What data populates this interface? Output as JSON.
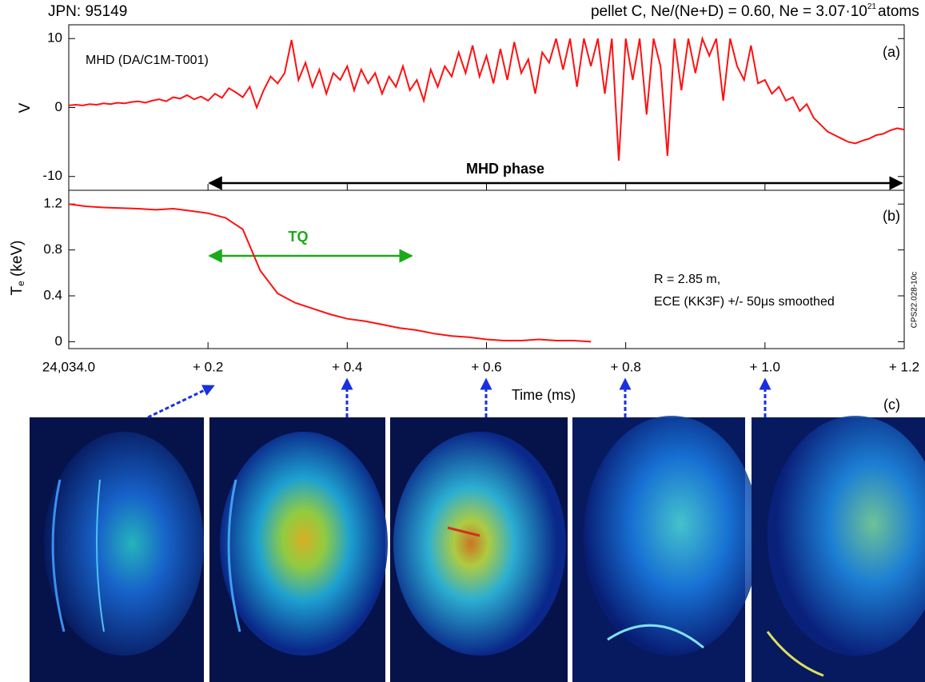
{
  "chart_data": [
    {
      "type": "line",
      "title": "JPN: 95149",
      "subtitle": {
        "text": "pellet C, Ne/(Ne+D) = 0.60, Ne = 3.07·10",
        "superscript": "21",
        "suffix": "atoms"
      },
      "ylabel": "V",
      "panel_label": "(a)",
      "annotations": [
        "MHD (DA/C1M-T001)",
        "MHD phase"
      ],
      "color": "#ff1010",
      "xlim": [
        0,
        1.2
      ],
      "ylim": [
        -12,
        12
      ],
      "yticks": [
        -10,
        0,
        10
      ],
      "x": [
        0,
        0.01,
        0.02,
        0.03,
        0.04,
        0.05,
        0.06,
        0.07,
        0.08,
        0.09,
        0.1,
        0.11,
        0.12,
        0.13,
        0.14,
        0.15,
        0.16,
        0.17,
        0.18,
        0.19,
        0.2,
        0.21,
        0.22,
        0.23,
        0.24,
        0.25,
        0.26,
        0.27,
        0.28,
        0.29,
        0.3,
        0.31,
        0.32,
        0.33,
        0.34,
        0.35,
        0.36,
        0.37,
        0.38,
        0.39,
        0.4,
        0.41,
        0.42,
        0.43,
        0.44,
        0.45,
        0.46,
        0.47,
        0.48,
        0.49,
        0.5,
        0.51,
        0.52,
        0.53,
        0.54,
        0.55,
        0.56,
        0.57,
        0.58,
        0.59,
        0.6,
        0.61,
        0.62,
        0.63,
        0.64,
        0.65,
        0.66,
        0.67,
        0.68,
        0.69,
        0.7,
        0.71,
        0.72,
        0.73,
        0.74,
        0.75,
        0.76,
        0.77,
        0.78,
        0.79,
        0.8,
        0.81,
        0.82,
        0.83,
        0.84,
        0.85,
        0.86,
        0.87,
        0.88,
        0.89,
        0.9,
        0.91,
        0.92,
        0.93,
        0.94,
        0.95,
        0.96,
        0.97,
        0.98,
        0.99,
        1.0,
        1.01,
        1.02,
        1.03,
        1.04,
        1.05,
        1.06,
        1.07,
        1.08,
        1.09,
        1.1,
        1.11,
        1.12,
        1.13,
        1.14,
        1.15,
        1.16,
        1.17,
        1.18,
        1.19,
        1.2
      ],
      "values": [
        0.3,
        0.4,
        0.3,
        0.5,
        0.4,
        0.6,
        0.5,
        0.7,
        0.6,
        0.8,
        0.9,
        0.7,
        1.0,
        1.2,
        0.9,
        1.5,
        1.3,
        1.8,
        1.2,
        1.6,
        1.0,
        2.0,
        1.4,
        2.8,
        2.2,
        1.5,
        3.0,
        0.0,
        2.5,
        4.5,
        3.5,
        5.0,
        9.8,
        4.0,
        6.5,
        3.0,
        5.5,
        2.0,
        5.0,
        4.0,
        6.0,
        2.5,
        5.5,
        3.5,
        5.0,
        2.0,
        4.5,
        3.0,
        6.0,
        2.5,
        4.0,
        1.0,
        5.5,
        3.0,
        6.0,
        4.5,
        8.0,
        5.0,
        9.0,
        4.5,
        7.5,
        3.5,
        8.5,
        4.0,
        9.5,
        5.0,
        7.0,
        2.0,
        8.0,
        6.5,
        10,
        5.5,
        10,
        3.0,
        10,
        6.0,
        10,
        2.0,
        10,
        -7.7,
        10,
        4.0,
        10,
        -1.0,
        10,
        6.0,
        -7.0,
        10,
        2.5,
        10,
        5.0,
        10,
        7.5,
        10,
        1.0,
        10,
        6.0,
        4.0,
        9.0,
        3.5,
        4.0,
        2.0,
        3.0,
        1.0,
        1.5,
        -0.5,
        0.5,
        -1.5,
        -2.5,
        -3.5,
        -4.0,
        -4.5,
        -5.0,
        -5.2,
        -4.8,
        -4.5,
        -4.0,
        -3.8,
        -3.3,
        -3.0,
        -3.2
      ]
    },
    {
      "type": "line",
      "ylabel": {
        "text": "T",
        "subscript": "e",
        "suffix": " (keV)"
      },
      "panel_label": "(b)",
      "xlabel": "Time (ms)",
      "annotations": [
        "TQ",
        "R = 2.85 m,",
        "ECE (KK3F) +/- 50μs smoothed"
      ],
      "side_note": "CPS22.028-10c",
      "color": "#ff1010",
      "xlim": [
        0,
        1.2
      ],
      "ylim": [
        -0.06,
        1.32
      ],
      "yticks": [
        0,
        0.4,
        0.8,
        1.2
      ],
      "xticks": [
        {
          "value": 0,
          "label": "24,034.0"
        },
        {
          "value": 0.2,
          "label": "+ 0.2"
        },
        {
          "value": 0.4,
          "label": "+ 0.4"
        },
        {
          "value": 0.6,
          "label": "+ 0.6"
        },
        {
          "value": 0.8,
          "label": "+ 0.8"
        },
        {
          "value": 1.0,
          "label": "+ 1.0"
        },
        {
          "value": 1.2,
          "label": "+ 1.2"
        }
      ],
      "x": [
        0,
        0.025,
        0.05,
        0.075,
        0.1,
        0.125,
        0.15,
        0.175,
        0.2,
        0.225,
        0.25,
        0.275,
        0.3,
        0.325,
        0.35,
        0.375,
        0.4,
        0.425,
        0.45,
        0.475,
        0.5,
        0.525,
        0.55,
        0.575,
        0.6,
        0.625,
        0.65,
        0.675,
        0.7,
        0.725,
        0.75
      ],
      "values": [
        1.2,
        1.18,
        1.17,
        1.165,
        1.16,
        1.15,
        1.16,
        1.14,
        1.12,
        1.08,
        0.98,
        0.62,
        0.42,
        0.34,
        0.29,
        0.24,
        0.2,
        0.18,
        0.15,
        0.12,
        0.1,
        0.07,
        0.05,
        0.04,
        0.02,
        0.01,
        0.01,
        0.02,
        0.01,
        0.01,
        0.0
      ]
    }
  ],
  "images": {
    "panel_label": "(c)"
  }
}
